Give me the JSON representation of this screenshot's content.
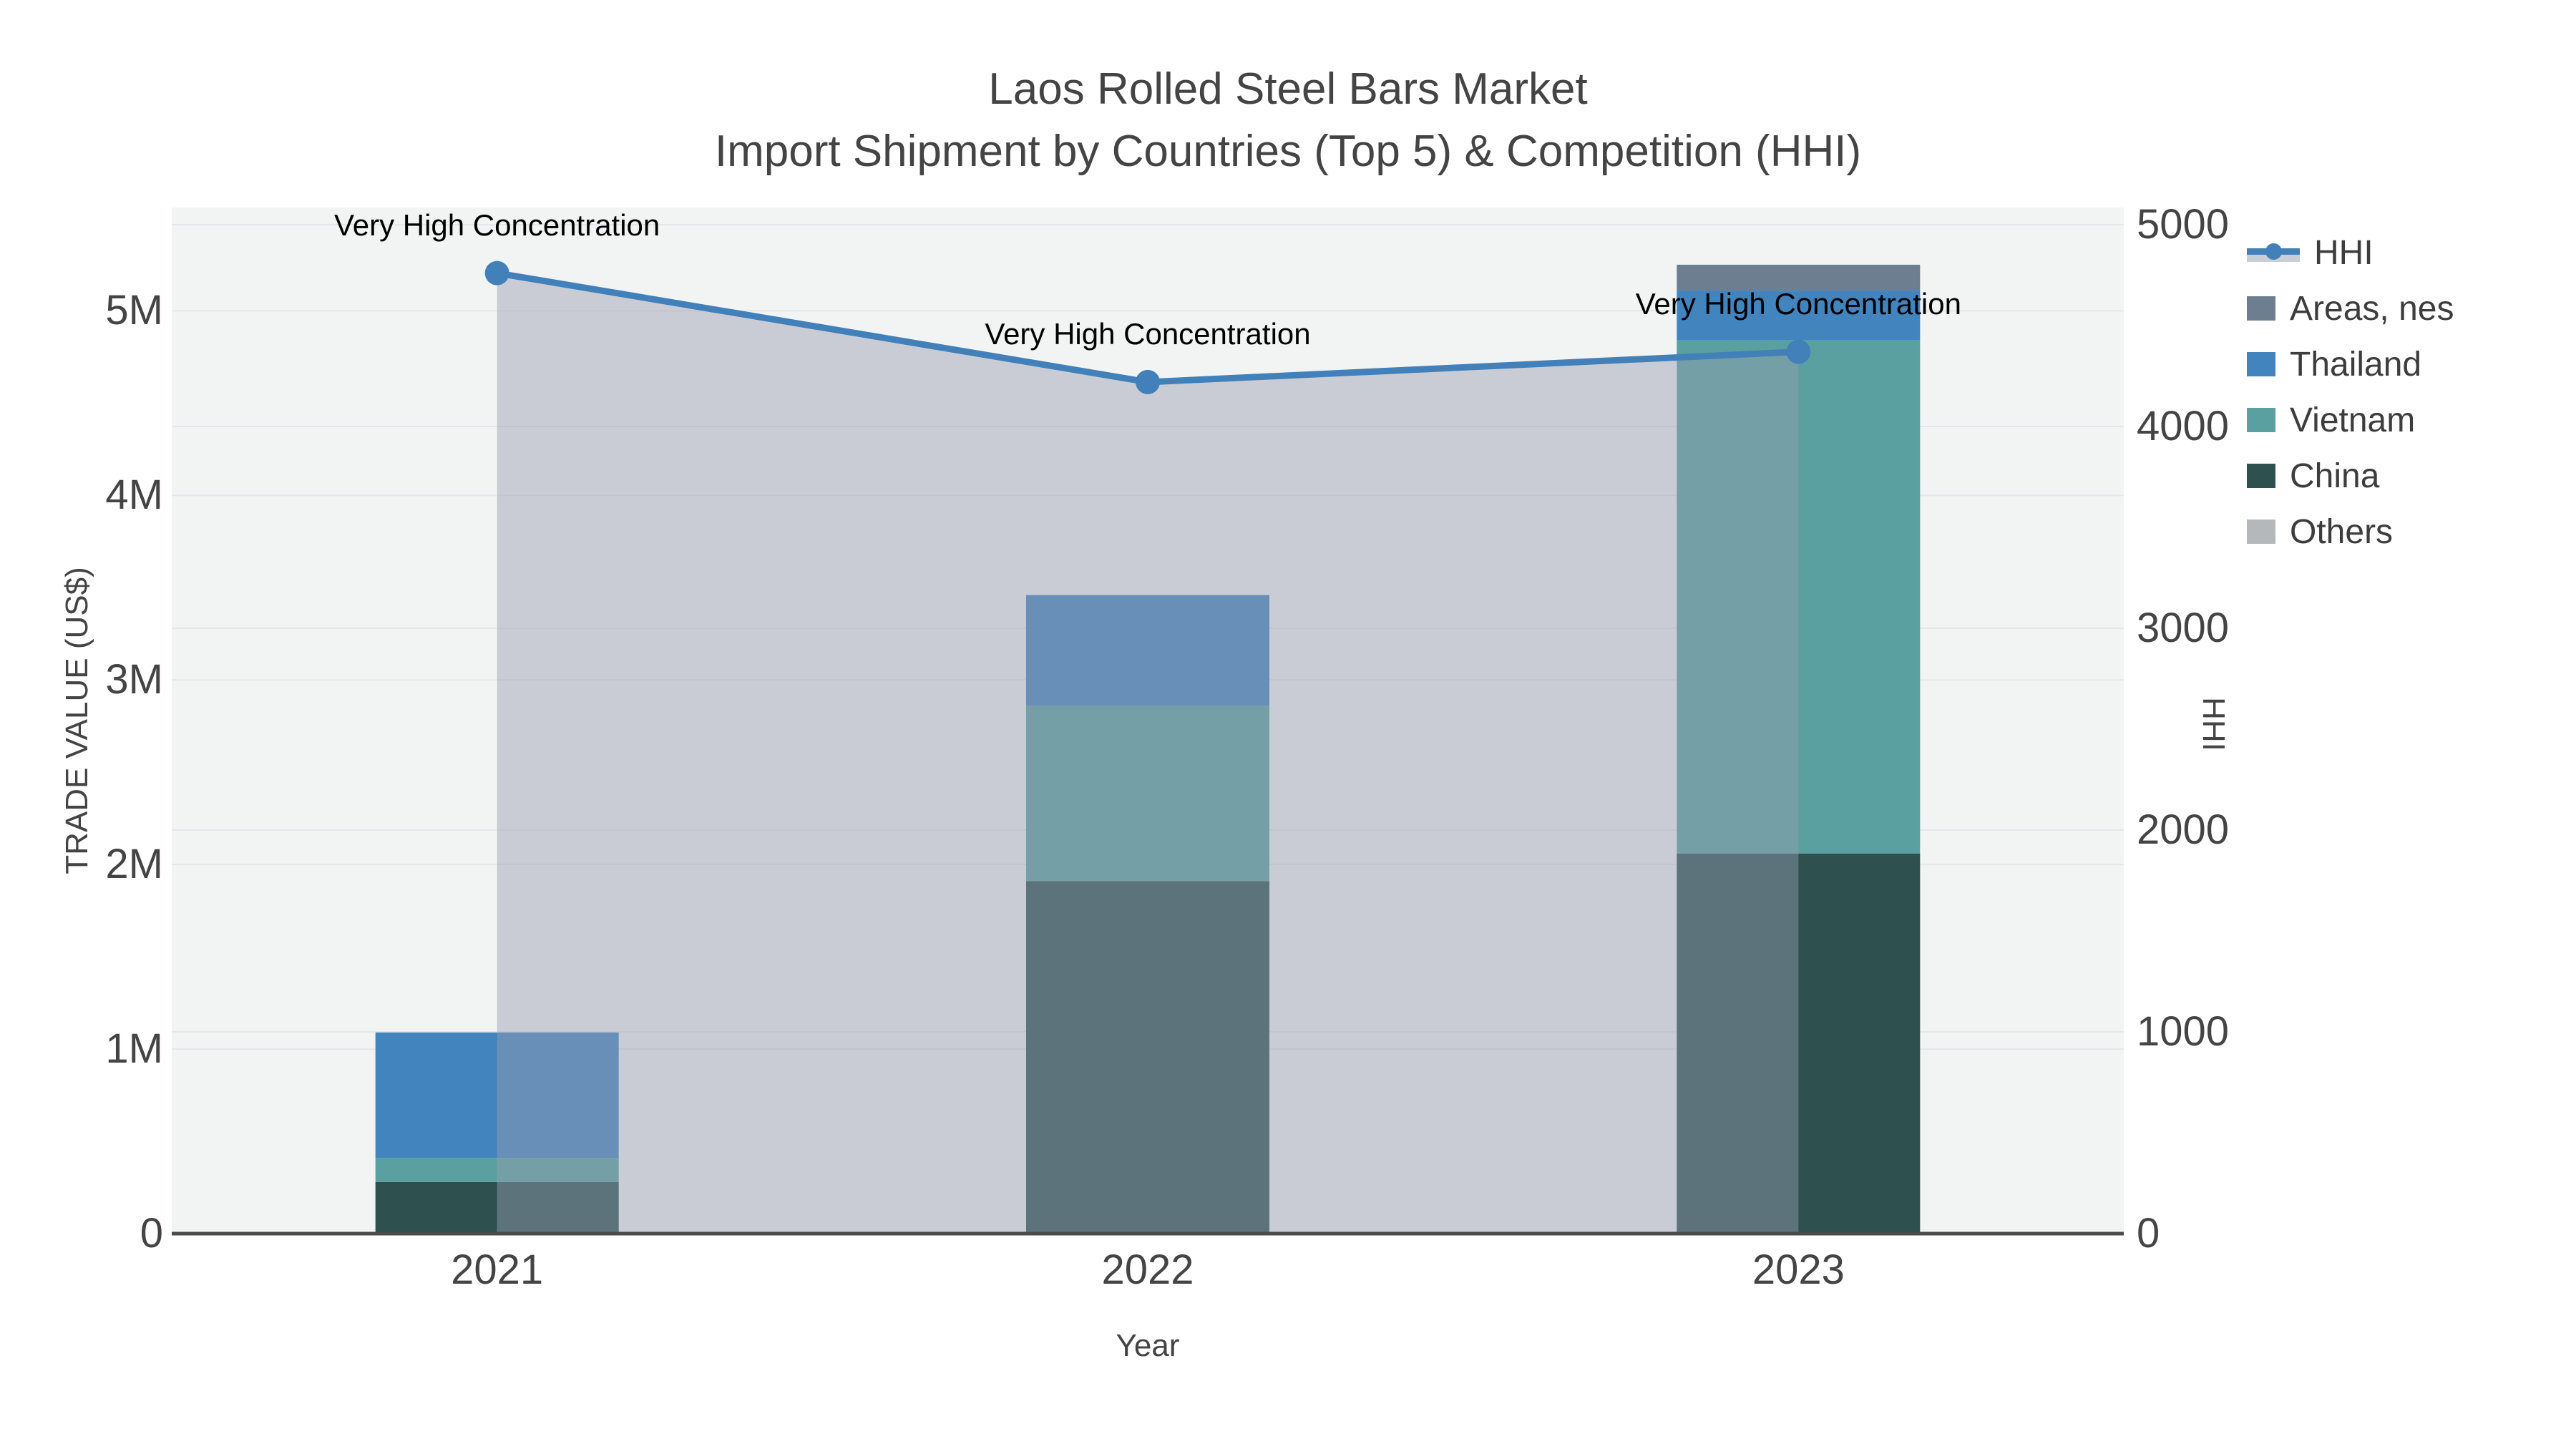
{
  "title": {
    "line1": "Laos Rolled Steel Bars Market",
    "line2": "Import Shipment by Countries (Top 5) & Competition (HHI)"
  },
  "axes": {
    "x": {
      "title": "Year",
      "categories": [
        "2021",
        "2022",
        "2023"
      ]
    },
    "y_left": {
      "title": "TRADE VALUE (US$)",
      "tick_labels": [
        "0",
        "1M",
        "2M",
        "3M",
        "4M",
        "5M"
      ],
      "tick_values": [
        0,
        1000000,
        2000000,
        3000000,
        4000000,
        5000000
      ]
    },
    "y_right": {
      "title": "HHI",
      "tick_labels": [
        "0",
        "1000",
        "2000",
        "3000",
        "4000",
        "5000"
      ],
      "tick_values": [
        0,
        1000,
        2000,
        3000,
        4000,
        5000
      ]
    }
  },
  "legend": {
    "items": [
      {
        "label": "HHI",
        "type": "line",
        "color": "#4180B8",
        "band": "#C9CDD5"
      },
      {
        "label": "Areas, nes",
        "type": "bar",
        "color": "#6E7E91"
      },
      {
        "label": "Thailand",
        "type": "bar",
        "color": "#4284BE"
      },
      {
        "label": "Vietnam",
        "type": "bar",
        "color": "#5AA0A0"
      },
      {
        "label": "China",
        "type": "bar",
        "color": "#2E5150"
      },
      {
        "label": "Others",
        "type": "bar",
        "color": "#B4B8BB"
      }
    ]
  },
  "chart_data": {
    "type": "bar+line",
    "title": "Laos Rolled Steel Bars Market — Import Shipment by Countries (Top 5) & Competition (HHI)",
    "categories": [
      "2021",
      "2022",
      "2023"
    ],
    "bar_unit": "US$",
    "bar_stack_order_bottom_to_top": [
      "Others",
      "China",
      "Vietnam",
      "Thailand",
      "Areas, nes"
    ],
    "series": [
      {
        "name": "Others",
        "axis": "left",
        "values": [
          0,
          0,
          0
        ],
        "color": "#B4B8BB"
      },
      {
        "name": "China",
        "axis": "left",
        "values": [
          280000,
          1910000,
          2060000
        ],
        "color": "#2E5150"
      },
      {
        "name": "Vietnam",
        "axis": "left",
        "values": [
          130000,
          950000,
          2780000
        ],
        "color": "#5AA0A0"
      },
      {
        "name": "Thailand",
        "axis": "left",
        "values": [
          680000,
          600000,
          270000
        ],
        "color": "#4284BE"
      },
      {
        "name": "Areas, nes",
        "axis": "left",
        "values": [
          0,
          0,
          140000
        ],
        "color": "#6E7E91"
      }
    ],
    "bar_totals": [
      1090000,
      3460000,
      5250000
    ],
    "line_series": {
      "name": "HHI",
      "axis": "right",
      "values": [
        4760,
        4220,
        4370
      ],
      "color": "#4180B8",
      "area_fill": "rgba(150,158,175,0.45)"
    },
    "annotations": [
      {
        "text": "Very High Concentration",
        "category": "2021",
        "hhi": 4760
      },
      {
        "text": "Very High Concentration",
        "category": "2022",
        "hhi": 4220
      },
      {
        "text": "Very High Concentration",
        "category": "2023",
        "hhi": 4370
      }
    ],
    "xlabel": "Year",
    "ylabel_left": "TRADE VALUE (US$)",
    "ylabel_right": "HHI",
    "ylim_left": [
      0,
      5560000
    ],
    "ylim_right": [
      0,
      5085
    ],
    "grid": true,
    "legend_position": "right",
    "plot_bg": "#F2F3F3",
    "grid_color": "#E4E6E9",
    "axis_line_color": "#4A4A4A"
  }
}
